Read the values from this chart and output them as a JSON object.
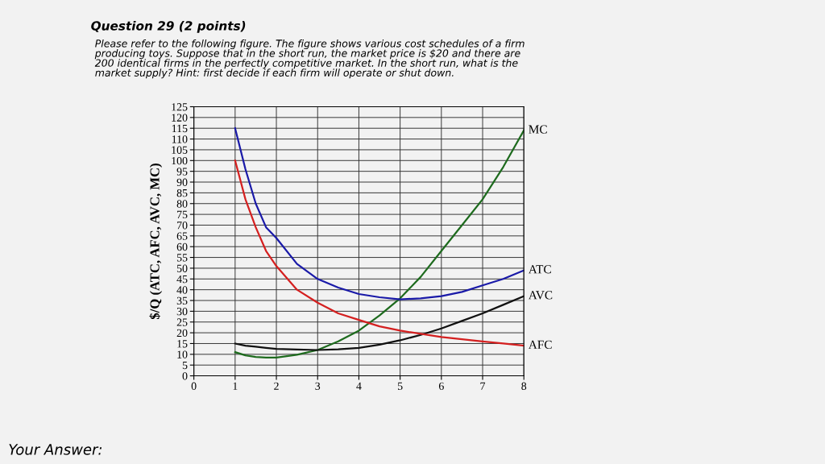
{
  "chart_data": {
    "type": "line",
    "title": "Question 29 (2 points)",
    "subtitle": "Please refer to the following figure. The figure shows various cost schedules of a firm\nproducing toys. Suppose that in the short run, the market price is $20 and there are\n200 identical firms in the perfectly competitive market. In the short run, what is the\nmarket supply? Hint: first decide if each firm will operate or shut down.",
    "ylabel": "$/Q (ATC, AFC, AVC, MC)",
    "annotations": [
      "Your Answer:"
    ],
    "x": [
      1,
      1.25,
      1.5,
      1.75,
      2,
      2.5,
      3,
      3.5,
      4,
      4.5,
      5,
      5.5,
      6,
      6.5,
      7,
      7.5,
      8
    ],
    "series": [
      {
        "name": "MC",
        "color": "#1e6b1e",
        "values": [
          11,
          9.5,
          8.8,
          8.5,
          8.5,
          9.8,
          12,
          16,
          21,
          28,
          36,
          46,
          58,
          70,
          82,
          97,
          114
        ]
      },
      {
        "name": "ATC",
        "color": "#1a1aa8",
        "values": [
          115,
          96,
          80,
          69,
          64,
          52,
          45,
          41,
          38,
          36.5,
          35.5,
          36,
          37,
          39,
          42,
          45,
          49
        ]
      },
      {
        "name": "AVC",
        "color": "#111111",
        "values": [
          15,
          14,
          13.5,
          13,
          12.5,
          12.2,
          12,
          12.3,
          13,
          14.5,
          16.5,
          19,
          22,
          25.5,
          29,
          33,
          37
        ]
      },
      {
        "name": "AFC",
        "color": "#d42020",
        "values": [
          100,
          82,
          69,
          58,
          51,
          40,
          34,
          29,
          26,
          23,
          21,
          19.5,
          18,
          17,
          16,
          15,
          14
        ]
      }
    ],
    "xlim": [
      0,
      8
    ],
    "xticks": [
      0,
      1,
      2,
      3,
      4,
      5,
      6,
      7,
      8
    ],
    "ylim": [
      0,
      125
    ],
    "yticks": [
      0,
      5,
      10,
      15,
      20,
      25,
      30,
      35,
      40,
      45,
      50,
      55,
      60,
      65,
      70,
      75,
      80,
      85,
      90,
      95,
      100,
      105,
      110,
      115,
      120,
      125
    ],
    "grid": true,
    "legend": false,
    "marker": "none",
    "line_style": "solid"
  }
}
